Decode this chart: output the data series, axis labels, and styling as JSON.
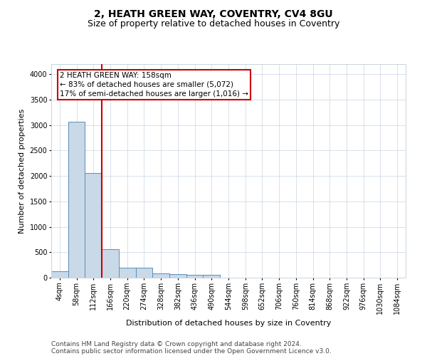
{
  "title1": "2, HEATH GREEN WAY, COVENTRY, CV4 8GU",
  "title2": "Size of property relative to detached houses in Coventry",
  "xlabel": "Distribution of detached houses by size in Coventry",
  "ylabel": "Number of detached properties",
  "categories": [
    "4sqm",
    "58sqm",
    "112sqm",
    "166sqm",
    "220sqm",
    "274sqm",
    "328sqm",
    "382sqm",
    "436sqm",
    "490sqm",
    "544sqm",
    "598sqm",
    "652sqm",
    "706sqm",
    "760sqm",
    "814sqm",
    "868sqm",
    "922sqm",
    "976sqm",
    "1030sqm",
    "1084sqm"
  ],
  "values": [
    130,
    3060,
    2060,
    560,
    195,
    200,
    80,
    65,
    50,
    50,
    0,
    0,
    0,
    0,
    0,
    0,
    0,
    0,
    0,
    0,
    0
  ],
  "bar_color": "#c9d9e8",
  "bar_edge_color": "#5b8db8",
  "vline_color": "#cc0000",
  "vline_x": 2.5,
  "annotation_text": "2 HEATH GREEN WAY: 158sqm\n← 83% of detached houses are smaller (5,072)\n17% of semi-detached houses are larger (1,016) →",
  "annotation_box_color": "#cc0000",
  "ylim": [
    0,
    4200
  ],
  "yticks": [
    0,
    500,
    1000,
    1500,
    2000,
    2500,
    3000,
    3500,
    4000
  ],
  "footer1": "Contains HM Land Registry data © Crown copyright and database right 2024.",
  "footer2": "Contains public sector information licensed under the Open Government Licence v3.0.",
  "bg_color": "#ffffff",
  "grid_color": "#c8d4e0",
  "title_fontsize": 10,
  "subtitle_fontsize": 9,
  "axis_label_fontsize": 8,
  "tick_fontsize": 7,
  "annot_fontsize": 7.5,
  "footer_fontsize": 6.5
}
